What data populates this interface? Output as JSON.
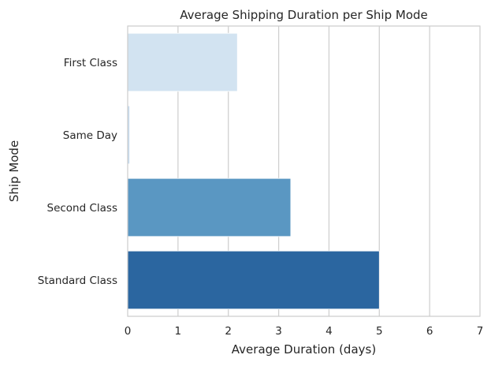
{
  "chart_data": {
    "type": "bar",
    "orientation": "horizontal",
    "title": "Average Shipping Duration per Ship Mode",
    "xlabel": "Average Duration (days)",
    "ylabel": "Ship Mode",
    "categories": [
      "First Class",
      "Same Day",
      "Second Class",
      "Standard Class"
    ],
    "values": [
      2.18,
      0.04,
      3.24,
      5.0
    ],
    "colors": [
      "#d2e3f1",
      "#c6dbef",
      "#5a97c2",
      "#2b66a0"
    ],
    "xlim": [
      0,
      7
    ],
    "xticks": [
      0,
      1,
      2,
      3,
      4,
      5,
      6,
      7
    ],
    "grid": "vertical",
    "legend": "none"
  }
}
